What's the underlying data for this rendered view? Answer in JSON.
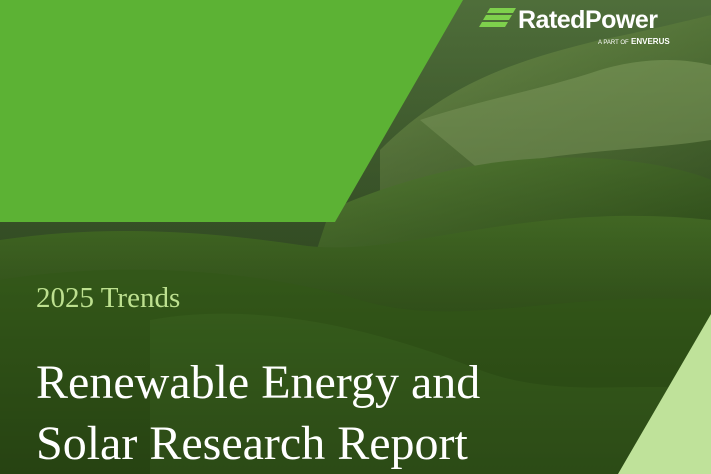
{
  "header": {
    "brand": "RatedPower",
    "tagline": "A PART OF",
    "parent": "ENVERUS"
  },
  "cover": {
    "subtitle": "2025 Trends",
    "title": [
      "Renewable Energy and",
      "Solar Research Report"
    ]
  }
}
